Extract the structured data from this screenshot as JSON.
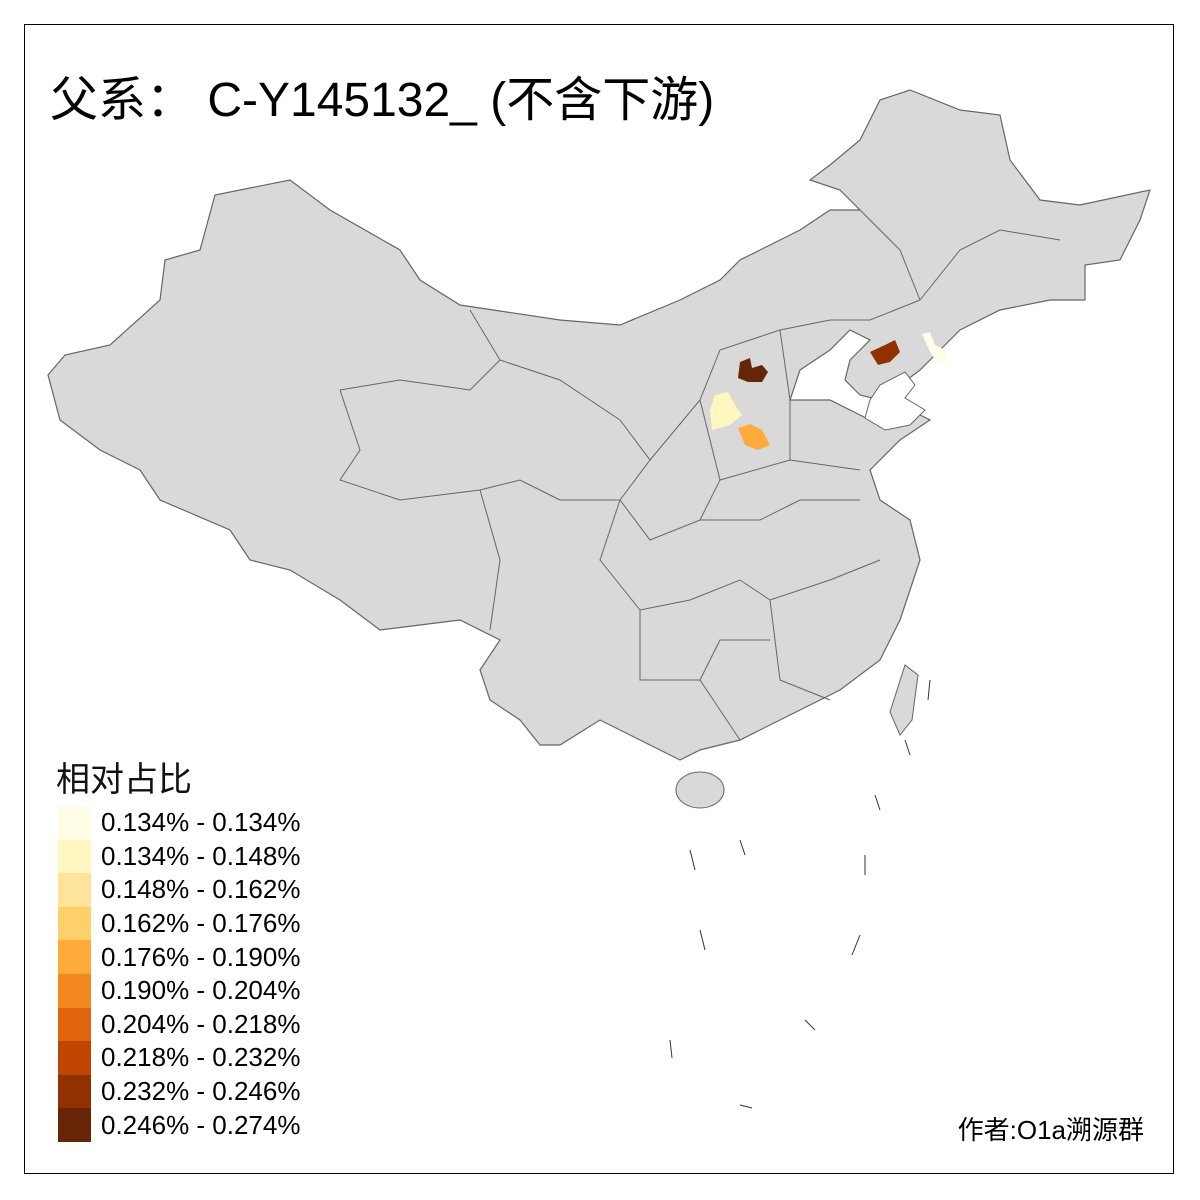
{
  "title": "父系： C-Y145132_ (不含下游)",
  "map": {
    "base_fill": "#d9d9d9",
    "border_color": "#666666",
    "sea_fill": "#ffffff",
    "highlighted_regions": [
      {
        "category": 9,
        "color": "#662506"
      },
      {
        "category": 8,
        "color": "#913000"
      },
      {
        "category": 1,
        "color": "#fff6c0"
      },
      {
        "category": 4,
        "color": "#feab3c"
      },
      {
        "category": 0,
        "color": "#fffde5"
      }
    ]
  },
  "legend": {
    "title": "相对占比",
    "items": [
      {
        "label": "0.134% - 0.134%",
        "color": "#fffde5"
      },
      {
        "label": "0.134% - 0.148%",
        "color": "#fff6c0"
      },
      {
        "label": "0.148% - 0.162%",
        "color": "#fee49a"
      },
      {
        "label": "0.162% - 0.176%",
        "color": "#fed06a"
      },
      {
        "label": "0.176% - 0.190%",
        "color": "#feab3c"
      },
      {
        "label": "0.190% - 0.204%",
        "color": "#f4871f"
      },
      {
        "label": "0.204% - 0.218%",
        "color": "#e0640e"
      },
      {
        "label": "0.218% - 0.232%",
        "color": "#c04600"
      },
      {
        "label": "0.232% - 0.246%",
        "color": "#913000"
      },
      {
        "label": "0.246% - 0.274%",
        "color": "#662506"
      }
    ]
  },
  "author": "作者:O1a溯源群"
}
